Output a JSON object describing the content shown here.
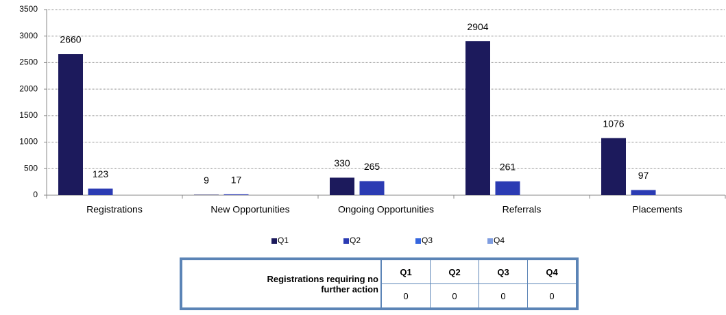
{
  "chart_data": {
    "type": "bar",
    "categories": [
      "Registrations",
      "New Opportunities",
      "Ongoing Opportunities",
      "Referrals",
      "Placements"
    ],
    "series": [
      {
        "name": "Q1",
        "color": "#1c1a5c",
        "values": [
          2660,
          9,
          330,
          2904,
          1076
        ]
      },
      {
        "name": "Q2",
        "color": "#2b3bb3",
        "values": [
          123,
          17,
          265,
          261,
          97
        ]
      },
      {
        "name": "Q3",
        "color": "#3566de",
        "values": [
          null,
          null,
          null,
          null,
          null
        ]
      },
      {
        "name": "Q4",
        "color": "#7f9de0",
        "values": [
          null,
          null,
          null,
          null,
          null
        ]
      }
    ],
    "ylim": [
      0,
      3500
    ],
    "yticks": [
      0,
      500,
      1000,
      1500,
      2000,
      2500,
      3000,
      3500
    ],
    "grid": true,
    "legend": "bottom"
  },
  "table": {
    "header": "Registrations requiring no further action",
    "columns": [
      "Q1",
      "Q2",
      "Q3",
      "Q4"
    ],
    "rows": [
      [
        0,
        0,
        0,
        0
      ]
    ]
  }
}
